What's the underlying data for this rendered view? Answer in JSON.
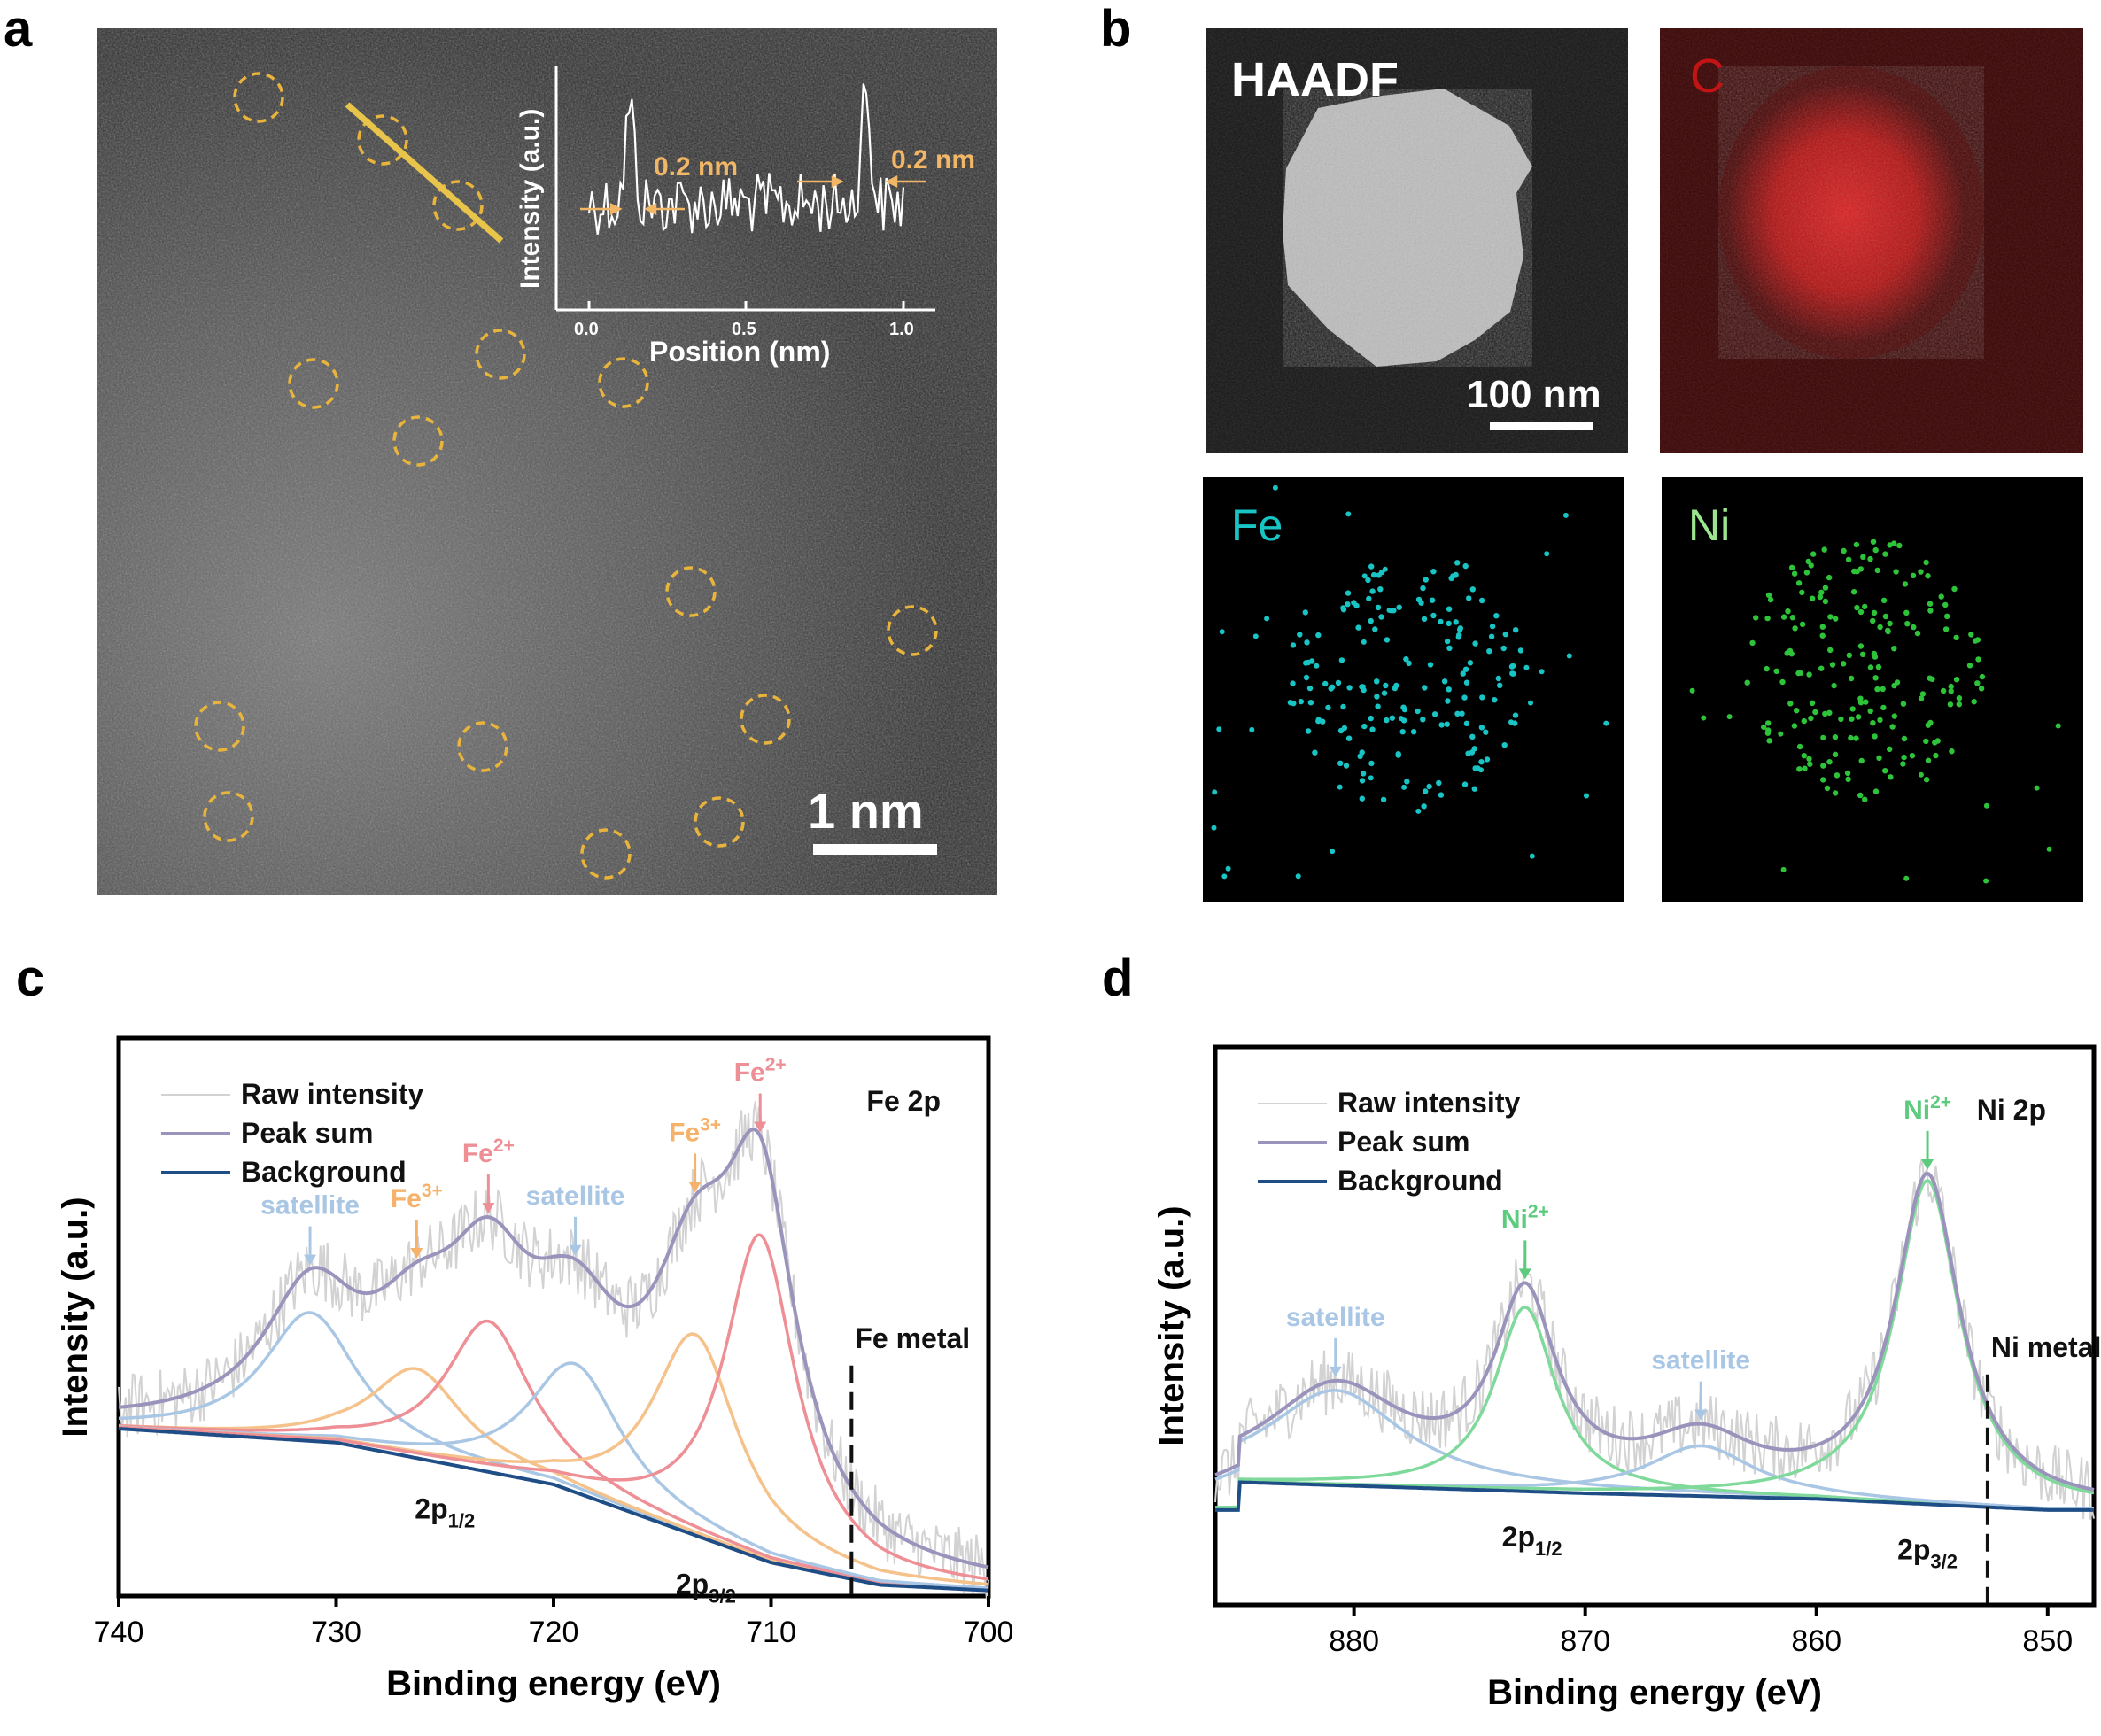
{
  "panels": {
    "a": {
      "letter": "a",
      "scale_bar": "1 nm",
      "inset": {
        "ylabel": "Intensity (a.u.)",
        "xlabel": "Position (nm)",
        "ticks": [
          "0.0",
          "0.5",
          "1.0"
        ],
        "annotation_left": "0.2 nm",
        "annotation_right": "0.2 nm",
        "annotation_color": "#F2B766"
      },
      "circle_color": "#E8B43C"
    },
    "b": {
      "letter": "b",
      "maps": [
        {
          "label": "HAADF",
          "color": "#FFFFFF"
        },
        {
          "label": "C",
          "color": "#C21414"
        },
        {
          "label": "Fe",
          "color": "#18C4C4"
        },
        {
          "label": "Ni",
          "color": "#2EC43A"
        }
      ],
      "scale_bar": "100 nm"
    },
    "c": {
      "letter": "c"
    },
    "d": {
      "letter": "d"
    }
  },
  "chart_data": [
    {
      "type": "line",
      "panel": "c",
      "title": "Fe 2p",
      "xlabel": "Binding energy (eV)",
      "ylabel": "Intensity (a.u.)",
      "xlim": [
        740,
        700
      ],
      "x_reversed": true,
      "xticks": [
        740,
        730,
        720,
        710,
        700
      ],
      "ylim": [
        0,
        1
      ],
      "grid": false,
      "legend_position": "top-left",
      "legend": [
        "Raw intensity",
        "Peak sum",
        "Background"
      ],
      "series": [
        {
          "name": "Raw intensity",
          "color": "#D2D2D2"
        },
        {
          "name": "Peak sum",
          "color": "#9A93BB"
        },
        {
          "name": "Background",
          "color": "#1F4E87"
        }
      ],
      "background": [
        [
          740,
          0.3
        ],
        [
          730,
          0.275
        ],
        [
          720,
          0.2
        ],
        [
          710,
          0.06
        ],
        [
          705,
          0.02
        ],
        [
          700,
          0.01
        ]
      ],
      "components": [
        {
          "label": "satellite",
          "center": 731.2,
          "height": 0.23,
          "width": 2.6,
          "color": "#A9C7E4"
        },
        {
          "label": "Fe3+",
          "center": 726.3,
          "height": 0.16,
          "width": 2.6,
          "color": "#F6C28B"
        },
        {
          "label": "Fe2+",
          "center": 723.0,
          "height": 0.27,
          "width": 2.4,
          "color": "#EE8E95"
        },
        {
          "label": "satellite",
          "center": 719.0,
          "height": 0.23,
          "width": 2.6,
          "color": "#A9C7E4"
        },
        {
          "label": "Fe3+",
          "center": 713.5,
          "height": 0.36,
          "width": 2.4,
          "color": "#F6C28B"
        },
        {
          "label": "Fe2+",
          "center": 710.5,
          "height": 0.58,
          "width": 2.0,
          "color": "#EE8E95"
        }
      ],
      "annotations": [
        {
          "text": "satellite",
          "x": 731.2,
          "color": "#A9C7E4"
        },
        {
          "text": "Fe",
          "sup": "3+",
          "x": 726.3,
          "color": "#F6B16A"
        },
        {
          "text": "Fe",
          "sup": "2+",
          "x": 723.0,
          "color": "#EE8E95"
        },
        {
          "text": "satellite",
          "x": 719.0,
          "color": "#A9C7E4"
        },
        {
          "text": "Fe",
          "sup": "3+",
          "x": 713.5,
          "color": "#F6B16A"
        },
        {
          "text": "Fe",
          "sup": "2+",
          "x": 710.5,
          "color": "#EE8E95"
        }
      ],
      "reference_line": {
        "label": "Fe metal",
        "x": 706.3
      },
      "orbital_labels": [
        {
          "text": "2p",
          "sub": "1/2",
          "x": 725
        },
        {
          "text": "2p",
          "sub": "3/2",
          "x": 713
        }
      ]
    },
    {
      "type": "line",
      "panel": "d",
      "title": "Ni 2p",
      "xlabel": "Binding energy (eV)",
      "ylabel": "Intensity (a.u.)",
      "xlim": [
        886,
        848
      ],
      "x_reversed": true,
      "xticks": [
        880,
        870,
        860,
        850
      ],
      "ylim": [
        0,
        1
      ],
      "grid": false,
      "legend_position": "top-left",
      "legend": [
        "Raw intensity",
        "Peak sum",
        "Background"
      ],
      "series": [
        {
          "name": "Raw intensity",
          "color": "#D2D2D2"
        },
        {
          "name": "Peak sum",
          "color": "#9A93BB"
        },
        {
          "name": "Background",
          "color": "#1F4E87"
        }
      ],
      "background": [
        [
          885,
          0.22
        ],
        [
          870,
          0.2
        ],
        [
          860,
          0.19
        ],
        [
          850,
          0.17
        ]
      ],
      "components": [
        {
          "label": "satellite",
          "center": 880.8,
          "height": 0.17,
          "width": 3.6,
          "color": "#A9C7E4"
        },
        {
          "label": "Ni2+",
          "center": 872.6,
          "height": 0.33,
          "width": 1.6,
          "color": "#7FD99A"
        },
        {
          "label": "satellite",
          "center": 865.0,
          "height": 0.09,
          "width": 2.8,
          "color": "#A9C7E4"
        },
        {
          "label": "Ni2+",
          "center": 855.2,
          "height": 0.58,
          "width": 1.7,
          "color": "#7FD99A"
        }
      ],
      "annotations": [
        {
          "text": "satellite",
          "x": 880.8,
          "color": "#A9C7E4"
        },
        {
          "text": "Ni",
          "sup": "2+",
          "x": 872.6,
          "color": "#5DCB7E"
        },
        {
          "text": "satellite",
          "x": 865.0,
          "color": "#A9C7E4"
        },
        {
          "text": "Ni",
          "sup": "2+",
          "x": 855.2,
          "color": "#5DCB7E"
        }
      ],
      "reference_line": {
        "label": "Ni metal",
        "x": 852.6
      },
      "orbital_labels": [
        {
          "text": "2p",
          "sub": "1/2",
          "x": 872.3
        },
        {
          "text": "2p",
          "sub": "3/2",
          "x": 855.2
        }
      ]
    }
  ]
}
